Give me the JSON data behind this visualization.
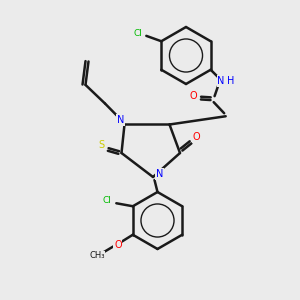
{
  "bg_color": "#ebebeb",
  "bond_color": "#1a1a1a",
  "colors": {
    "N": "#0000ff",
    "O": "#ff0000",
    "S": "#cccc00",
    "Cl": "#00bb00",
    "C": "#1a1a1a"
  },
  "lw": 1.8
}
